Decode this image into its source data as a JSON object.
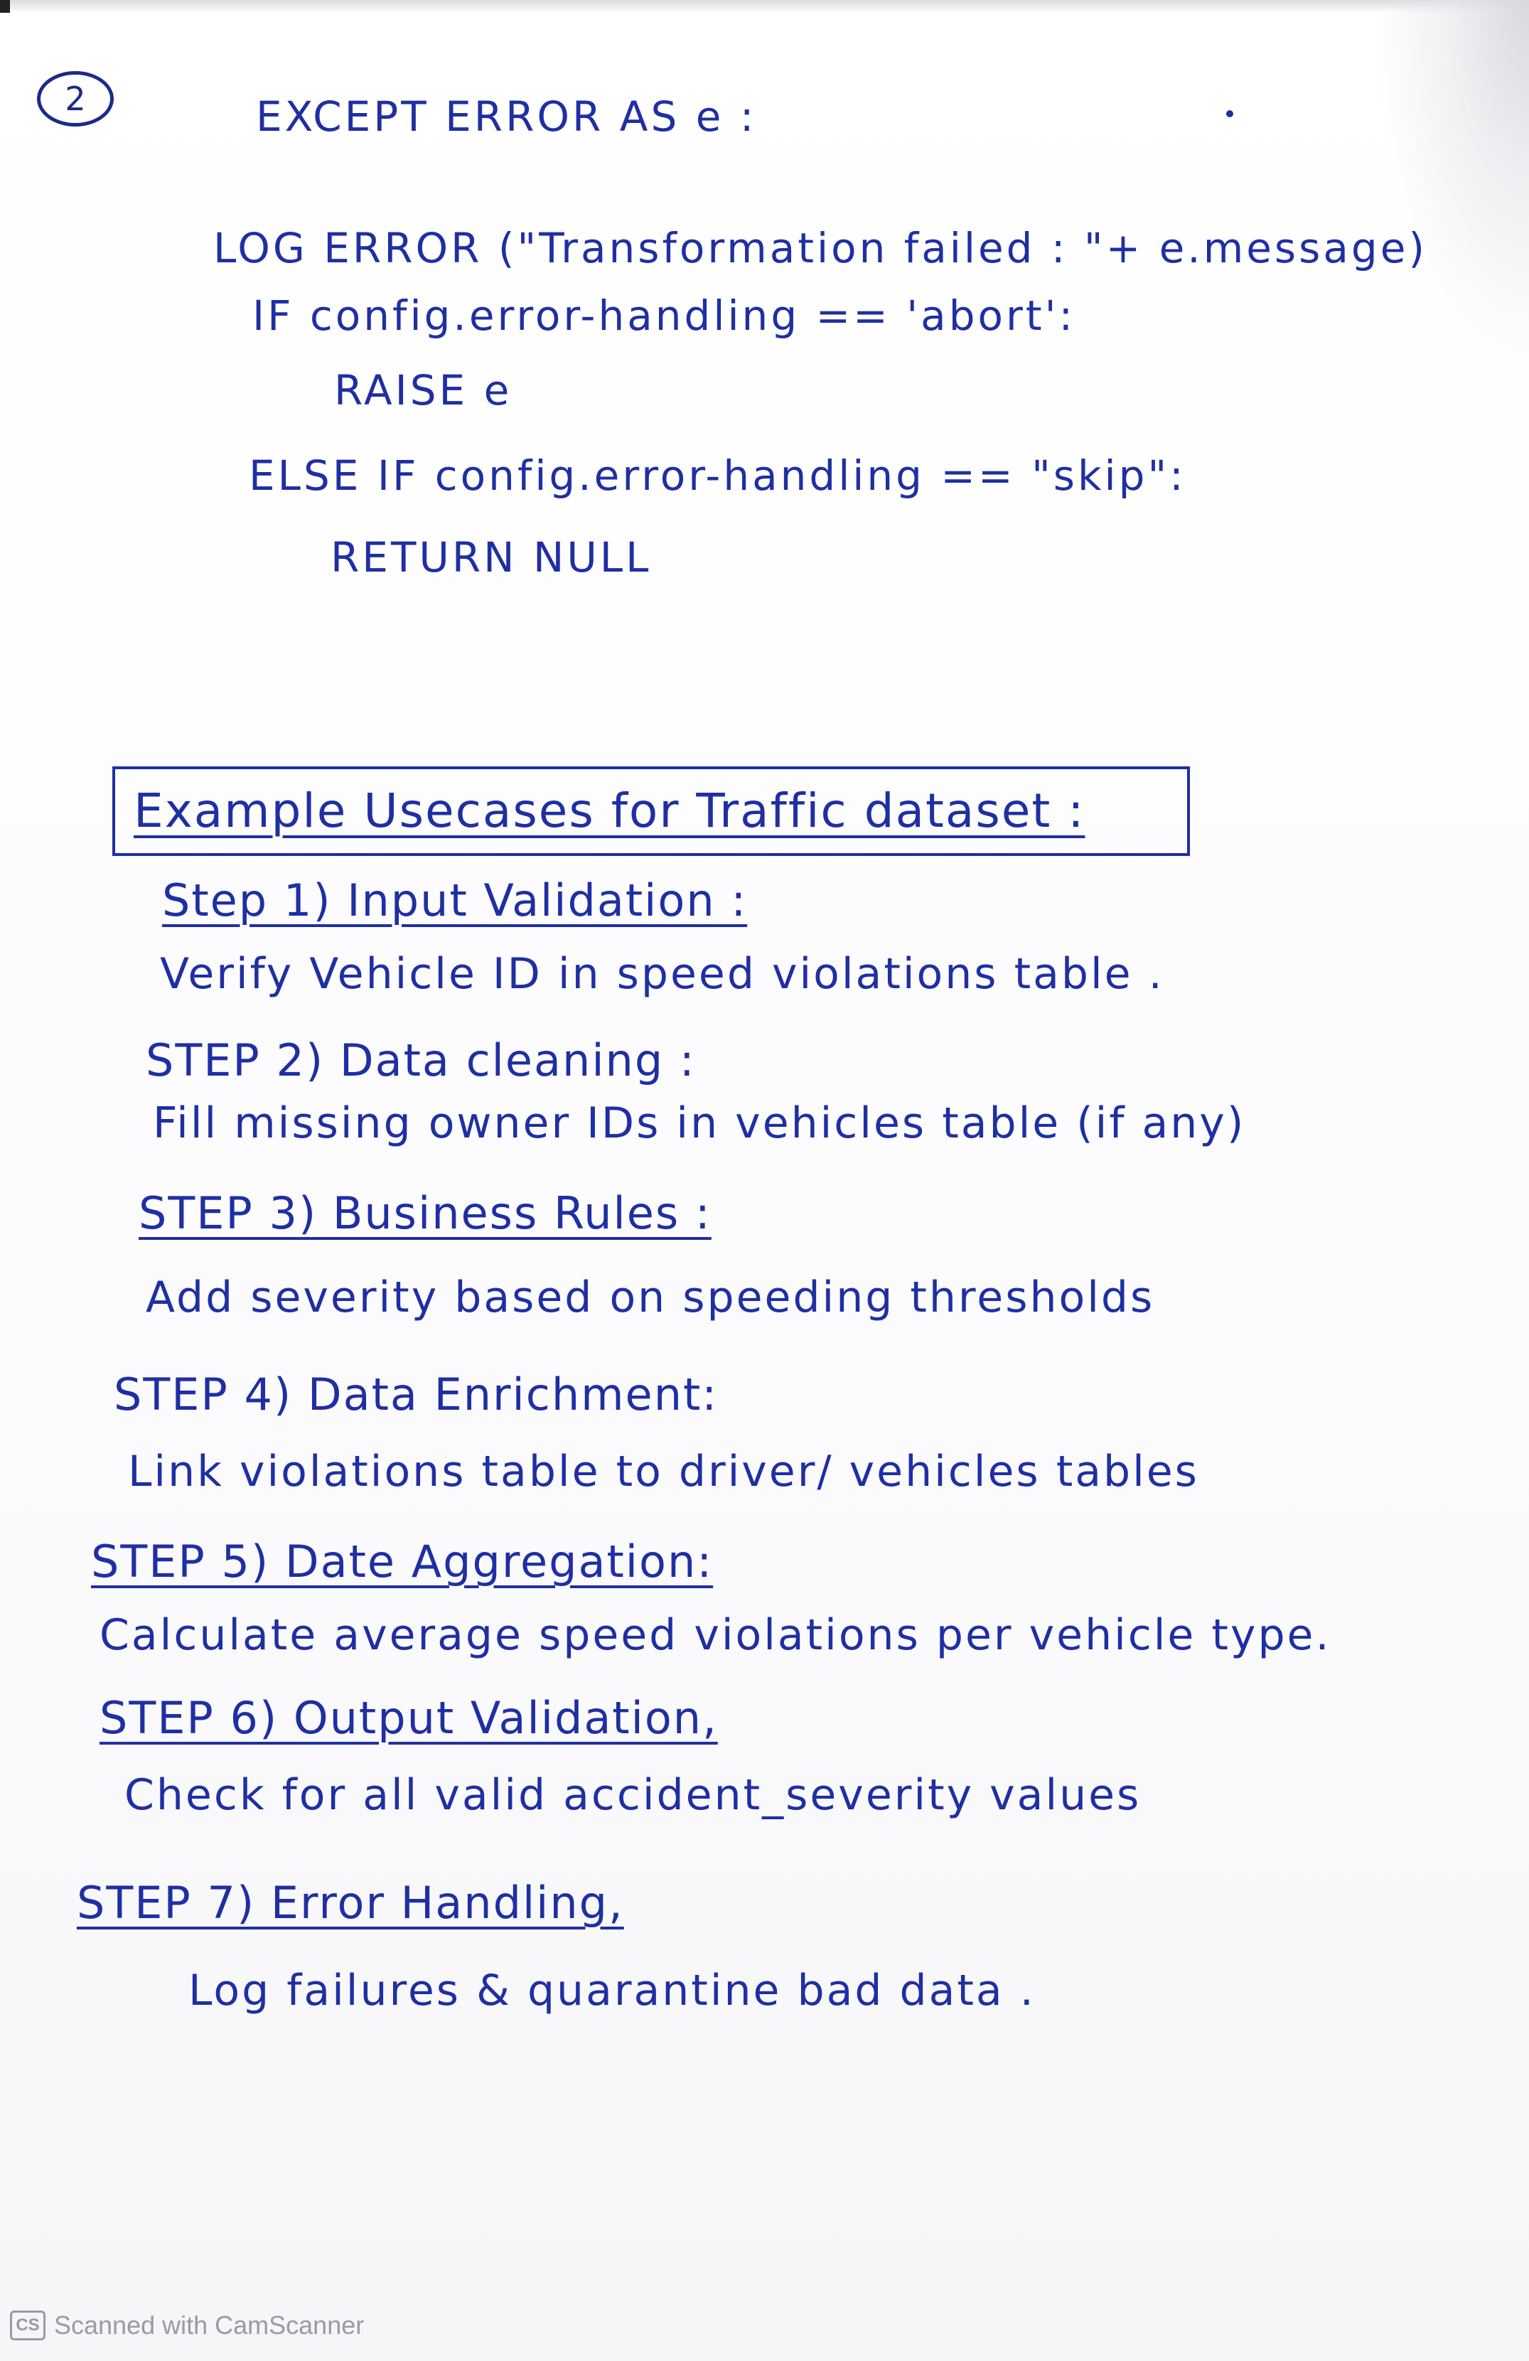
{
  "page_number": "2",
  "code_block": {
    "line1": "EXCEPT ERROR AS e :",
    "line2": "LOG ERROR (\"Transformation failed : \"+ e.message)",
    "line3": "IF config.error-handling == 'abort':",
    "line4": "RAISE e",
    "line5": "ELSE IF config.error-handling == \"skip\":",
    "line6": "RETURN NULL"
  },
  "section_title": "Example Usecases for Traffic dataset :",
  "steps": [
    {
      "heading": "Step 1) Input Validation :",
      "text": "Verify Vehicle ID in speed violations table ."
    },
    {
      "heading": "STEP 2) Data cleaning :",
      "text": "Fill missing owner IDs in vehicles table (if any)"
    },
    {
      "heading": "STEP 3) Business Rules :",
      "text": "Add severity based on speeding thresholds"
    },
    {
      "heading": "STEP 4) Data Enrichment:",
      "text": "Link violations table to driver/ vehicles tables"
    },
    {
      "heading": "STEP 5) Date Aggregation:",
      "text": "Calculate average speed violations per vehicle type."
    },
    {
      "heading": "STEP 6) Output Validation,",
      "text": "Check for all valid accident_severity values"
    },
    {
      "heading": "STEP 7) Error Handling,",
      "text": "Log failures & quarantine bad data ."
    }
  ],
  "footer": {
    "logo_text": "CS",
    "label": "Scanned with CamScanner"
  },
  "colors": {
    "ink": "#1f2fa3",
    "paper": "#fbfbfd",
    "footer_gray": "#9a9aa4"
  }
}
